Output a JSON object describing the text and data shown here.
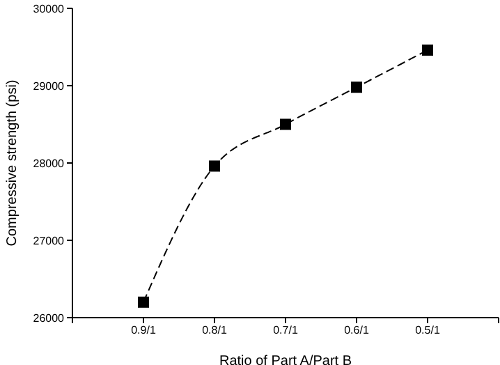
{
  "chart_data": {
    "type": "line",
    "xlabel": "Ratio of Part A/Part B",
    "ylabel": "Compressive strength (psi)",
    "categories": [
      "0.9/1",
      "0.8/1",
      "0.7/1",
      "0.6/1",
      "0.5/1"
    ],
    "series": [
      {
        "color": "#000000",
        "values": [
          26200,
          27960,
          28500,
          28980,
          29460
        ]
      }
    ],
    "ylim": [
      26000,
      30000
    ],
    "yticks": [
      26000,
      27000,
      28000,
      29000,
      30000
    ],
    "marker": "square",
    "line_style": "dashed",
    "grid": false,
    "legend": false
  }
}
